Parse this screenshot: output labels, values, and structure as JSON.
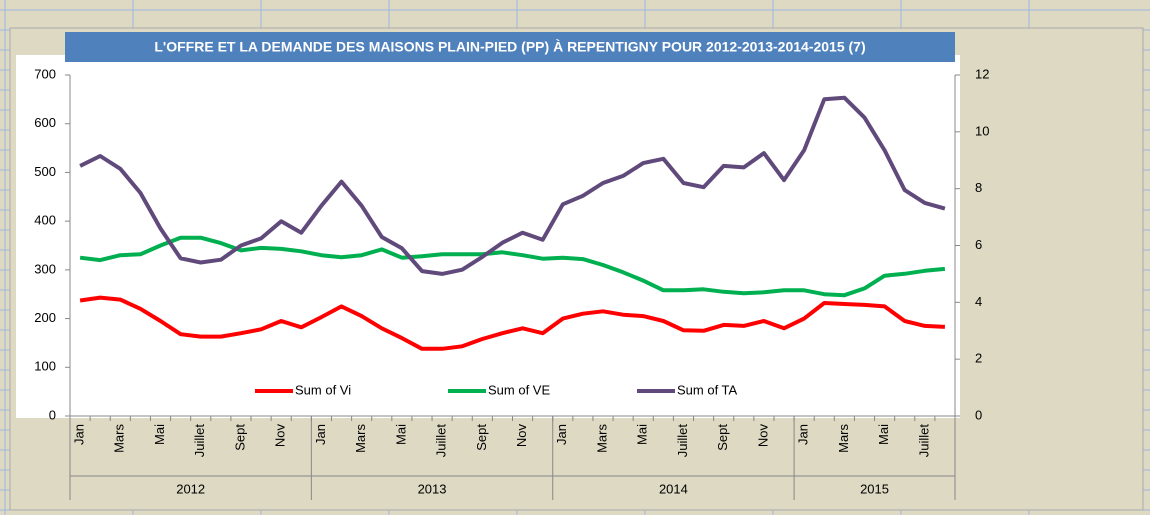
{
  "chart_data": {
    "type": "line",
    "title": "L'OFFRE ET LA DEMANDE DES MAISONS PLAIN-PIED (PP) À REPENTIGNY POUR 2012-2013-2014-2015  (7)",
    "categories": [
      "Jan",
      null,
      "Mars",
      null,
      "Mai",
      null,
      "Juillet",
      null,
      "Sept",
      null,
      "Nov",
      null,
      "Jan",
      null,
      "Mars",
      null,
      "Mai",
      null,
      "Juillet",
      null,
      "Sept",
      null,
      "Nov",
      null,
      "Jan",
      null,
      "Mars",
      null,
      "Mai",
      null,
      "Juillet",
      null,
      "Sept",
      null,
      "Nov",
      null,
      "Jan",
      null,
      "Mars",
      null,
      "Mai",
      null,
      "Juillet",
      null
    ],
    "x_groups": [
      {
        "label": "2012",
        "count": 12
      },
      {
        "label": "2013",
        "count": 12
      },
      {
        "label": "2014",
        "count": 12
      },
      {
        "label": "2015",
        "count": 8
      }
    ],
    "ylim": [
      0,
      700
    ],
    "yticks": [
      0,
      100,
      200,
      300,
      400,
      500,
      600,
      700
    ],
    "y2lim": [
      0,
      12
    ],
    "y2ticks": [
      0,
      2,
      4,
      6,
      8,
      10,
      12
    ],
    "series": [
      {
        "name": "Sum of Vi",
        "color": "#ff0000",
        "values": [
          237,
          243,
          239,
          220,
          195,
          168,
          163,
          163,
          170,
          178,
          195,
          182,
          203,
          225,
          205,
          180,
          160,
          138,
          138,
          143,
          158,
          170,
          180,
          170,
          200,
          210,
          215,
          208,
          205,
          195,
          176,
          175,
          187,
          185,
          195,
          180,
          200,
          232,
          230,
          228,
          225,
          195,
          185,
          183
        ]
      },
      {
        "name": "Sum of VE",
        "color": "#00b050",
        "values": [
          325,
          320,
          330,
          332,
          350,
          366,
          366,
          355,
          340,
          345,
          343,
          338,
          330,
          326,
          330,
          342,
          325,
          328,
          332,
          332,
          332,
          336,
          330,
          323,
          325,
          322,
          310,
          295,
          278,
          258,
          258,
          260,
          255,
          252,
          254,
          258,
          258,
          250,
          248,
          262,
          288,
          292,
          298,
          302
        ]
      },
      {
        "name": "Sum of TA",
        "color": "#604a7b",
        "axis": "y2",
        "values": [
          8.8,
          9.15,
          8.7,
          7.85,
          6.6,
          5.55,
          5.4,
          5.5,
          6.0,
          6.25,
          6.85,
          6.45,
          7.4,
          8.25,
          7.4,
          6.3,
          5.9,
          5.1,
          5.0,
          5.15,
          5.6,
          6.1,
          6.45,
          6.2,
          7.45,
          7.75,
          8.2,
          8.45,
          8.9,
          9.05,
          8.2,
          8.05,
          8.8,
          8.75,
          9.25,
          8.3,
          9.35,
          11.15,
          11.2,
          10.5,
          9.35,
          7.95,
          7.5,
          7.3
        ]
      }
    ]
  }
}
